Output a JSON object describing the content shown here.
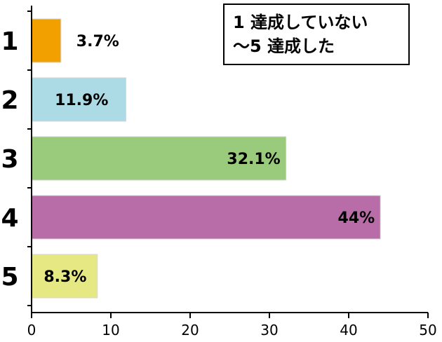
{
  "chart_data": {
    "type": "bar",
    "orientation": "horizontal",
    "categories": [
      "1",
      "2",
      "3",
      "4",
      "5"
    ],
    "values": [
      3.7,
      11.9,
      32.1,
      44,
      8.3
    ],
    "data_labels": [
      "3.7%",
      "11.9%",
      "32.1%",
      "44%",
      "8.3%"
    ],
    "colors": [
      "#f2a000",
      "#acdbe6",
      "#9acb7c",
      "#b96da8",
      "#e6e884"
    ],
    "xlim": [
      0,
      50
    ],
    "xticks": [
      "0",
      "10",
      "20",
      "30",
      "40",
      "50"
    ],
    "grid": false,
    "legend_text": [
      "1 達成していない",
      "～5 達成した"
    ],
    "legend_position": "top-right"
  }
}
